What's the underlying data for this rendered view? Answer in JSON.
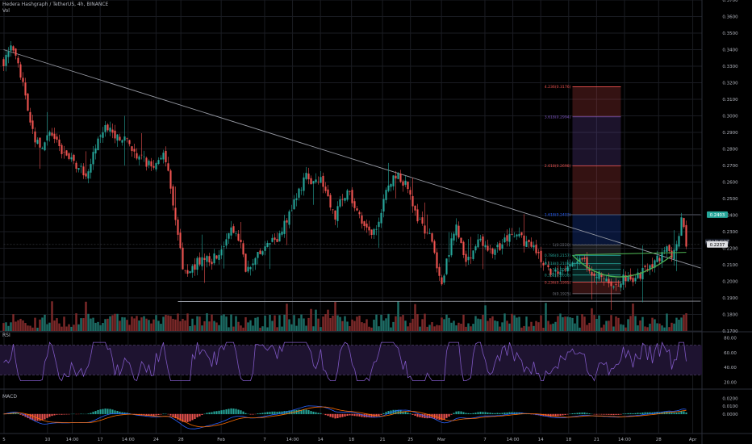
{
  "header": {
    "symbol_line": "Hedera Hashgraph / TetherUS, 4h, BINANCE",
    "volume_label": "Vol"
  },
  "panes": {
    "rsi_label": "RSI",
    "macd_label": "MACD"
  },
  "colors": {
    "background": "#000000",
    "grid": "#1a1c22",
    "axis_text": "#b2b5be",
    "bull": "#26a69a",
    "bear": "#ef5350",
    "bull_vol": "#1d6f68",
    "bear_vol": "#7f2a2a",
    "trendline": "#9598a1",
    "cup_line": "#4caf50",
    "rsi_line": "#7e57c2",
    "rsi_band": "#1e1330",
    "macd_line": "#2962ff",
    "signal_line": "#ff6d00",
    "price_tag": "#dfe0e4",
    "target_tag": "#26a69a"
  },
  "chart_data": {
    "type": "candlestick",
    "title": "Hedera Hashgraph / TetherUS, 4h, BINANCE",
    "price_axis": {
      "ticks": [
        "0.3700",
        "0.3600",
        "0.3500",
        "0.3400",
        "0.3300",
        "0.3200",
        "0.3100",
        "0.3000",
        "0.2900",
        "0.2800",
        "0.2700",
        "0.2600",
        "0.2500",
        "0.2400",
        "0.2300",
        "0.2200",
        "0.2100",
        "0.2000",
        "0.1900",
        "0.1800",
        "0.1700"
      ],
      "ylim": [
        0.17,
        0.37
      ]
    },
    "time_axis": {
      "ticks": [
        "5",
        "10",
        "14:00",
        "17",
        "14:00",
        "24",
        "28",
        "Feb",
        "7",
        "14:00",
        "14",
        "18",
        "21",
        "25",
        "Mar",
        "7",
        "14:00",
        "14",
        "18",
        "21",
        "14:00",
        "28",
        "Apr"
      ]
    },
    "price_path": [
      [
        0,
        0.333
      ],
      [
        3,
        0.34
      ],
      [
        5,
        0.335
      ],
      [
        8,
        0.318
      ],
      [
        11,
        0.293
      ],
      [
        15,
        0.28
      ],
      [
        19,
        0.288
      ],
      [
        22,
        0.284
      ],
      [
        25,
        0.276
      ],
      [
        28,
        0.272
      ],
      [
        32,
        0.268
      ],
      [
        34,
        0.262
      ],
      [
        37,
        0.278
      ],
      [
        40,
        0.287
      ],
      [
        43,
        0.294
      ],
      [
        46,
        0.285
      ],
      [
        49,
        0.288
      ],
      [
        52,
        0.283
      ],
      [
        55,
        0.277
      ],
      [
        59,
        0.272
      ],
      [
        62,
        0.268
      ],
      [
        66,
        0.28
      ],
      [
        68,
        0.264
      ],
      [
        71,
        0.236
      ],
      [
        74,
        0.21
      ],
      [
        76,
        0.205
      ],
      [
        79,
        0.21
      ],
      [
        83,
        0.215
      ],
      [
        86,
        0.213
      ],
      [
        90,
        0.219
      ],
      [
        93,
        0.228
      ],
      [
        95,
        0.232
      ],
      [
        98,
        0.225
      ],
      [
        100,
        0.205
      ],
      [
        103,
        0.213
      ],
      [
        106,
        0.217
      ],
      [
        110,
        0.222
      ],
      [
        114,
        0.228
      ],
      [
        118,
        0.24
      ],
      [
        122,
        0.254
      ],
      [
        125,
        0.265
      ],
      [
        128,
        0.26
      ],
      [
        131,
        0.262
      ],
      [
        134,
        0.25
      ],
      [
        137,
        0.24
      ],
      [
        140,
        0.25
      ],
      [
        143,
        0.254
      ],
      [
        146,
        0.24
      ],
      [
        149,
        0.233
      ],
      [
        152,
        0.226
      ],
      [
        155,
        0.236
      ],
      [
        158,
        0.254
      ],
      [
        161,
        0.264
      ],
      [
        164,
        0.262
      ],
      [
        167,
        0.258
      ],
      [
        170,
        0.242
      ],
      [
        173,
        0.232
      ],
      [
        176,
        0.228
      ],
      [
        178,
        0.216
      ],
      [
        181,
        0.2
      ],
      [
        184,
        0.218
      ],
      [
        187,
        0.236
      ],
      [
        190,
        0.214
      ],
      [
        193,
        0.211
      ],
      [
        196,
        0.226
      ],
      [
        199,
        0.22
      ],
      [
        202,
        0.218
      ],
      [
        205,
        0.221
      ],
      [
        208,
        0.226
      ],
      [
        212,
        0.228
      ],
      [
        216,
        0.222
      ],
      [
        220,
        0.218
      ],
      [
        223,
        0.212
      ],
      [
        226,
        0.207
      ],
      [
        229,
        0.205
      ],
      [
        232,
        0.208
      ],
      [
        235,
        0.21
      ],
      [
        238,
        0.216
      ],
      [
        241,
        0.21
      ],
      [
        244,
        0.202
      ],
      [
        247,
        0.205
      ],
      [
        250,
        0.2
      ],
      [
        252,
        0.196
      ],
      [
        255,
        0.201
      ],
      [
        257,
        0.203
      ],
      [
        260,
        0.2
      ],
      [
        263,
        0.204
      ],
      [
        266,
        0.208
      ],
      [
        269,
        0.212
      ],
      [
        272,
        0.216
      ],
      [
        274,
        0.22
      ],
      [
        276,
        0.216
      ],
      [
        278,
        0.222
      ],
      [
        280,
        0.238
      ],
      [
        282,
        0.2237
      ]
    ],
    "bar_count": 283,
    "trendlines": [
      {
        "name": "descending-resistance",
        "from": [
          0,
          0.34
        ],
        "to": [
          288,
          0.208
        ]
      },
      {
        "name": "support",
        "from": [
          72,
          0.1878
        ],
        "to": [
          288,
          0.188
        ]
      },
      {
        "name": "target-line",
        "from": [
          233,
          0.2403
        ],
        "to": [
          288,
          0.2403
        ]
      },
      {
        "name": "current-price-line",
        "from": [
          0,
          0.2223
        ],
        "to": [
          288,
          0.2223
        ]
      }
    ],
    "fibonacci": {
      "start_bar": 235,
      "end_bar": 255,
      "levels": [
        {
          "ratio": "4.236",
          "price": 0.3176,
          "label": "4.236(0.3176)",
          "color": "#ef5350"
        },
        {
          "ratio": "3.618",
          "price": 0.2994,
          "label": "3.618(0.2994)",
          "color": "#7e57c2"
        },
        {
          "ratio": "2.618",
          "price": 0.2698,
          "label": "2.618(0.2698)",
          "color": "#ef5350"
        },
        {
          "ratio": "1.618",
          "price": 0.2403,
          "label": "1.618(0.2403)",
          "color": "#2962ff"
        },
        {
          "ratio": "1",
          "price": 0.222,
          "label": "1(0.2220)",
          "color": "#787b86"
        },
        {
          "ratio": "0.786",
          "price": 0.2157,
          "label": "0.786(0.2157)",
          "color": "#26a69a"
        },
        {
          "ratio": "0.618",
          "price": 0.2108,
          "label": "0.618(0.2108)",
          "color": "#26a69a"
        },
        {
          "ratio": "0.5",
          "price": 0.2073,
          "label": "0.5(0.2073)",
          "color": "#26a69a"
        },
        {
          "ratio": "0.382",
          "price": 0.2038,
          "label": "0.382(0.2038)",
          "color": "#26a69a"
        },
        {
          "ratio": "0.236",
          "price": 0.1995,
          "label": "0.236(0.1995)",
          "color": "#ef5350"
        },
        {
          "ratio": "0",
          "price": 0.1925,
          "label": "0(0.1925)",
          "color": "#787b86"
        }
      ]
    },
    "cup_pattern": {
      "start": [
        235,
        0.2158
      ],
      "bottom": [
        253,
        0.1985
      ],
      "end": [
        276,
        0.2155
      ],
      "lip": [
        [
          236,
          0.216
        ],
        [
          282,
          0.2175
        ]
      ]
    },
    "price_tags": [
      {
        "label": "0.2403",
        "price": 0.2403,
        "role": "target"
      },
      {
        "label": "HBARUSDT",
        "price": 0.2238,
        "role": "symbol"
      },
      {
        "label": "0.2237",
        "price": 0.2223,
        "role": "last-price"
      }
    ],
    "rsi": {
      "ticks": [
        "80.00",
        "60.00",
        "40.00",
        "20.00"
      ],
      "ylim": [
        15,
        85
      ],
      "band": [
        30,
        70
      ]
    },
    "macd": {
      "ticks": [
        "0.0200",
        "0.0100",
        "0.0000"
      ],
      "ylim": [
        -0.018,
        0.028
      ]
    }
  }
}
